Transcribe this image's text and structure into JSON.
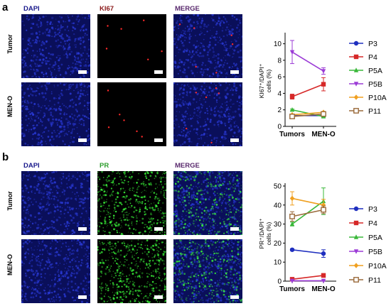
{
  "panel_a": {
    "letter": "a",
    "columns": [
      "DAPI",
      "KI67",
      "MERGE"
    ],
    "rows": [
      "Tumor",
      "MEN-O"
    ]
  },
  "panel_b": {
    "letter": "b",
    "columns": [
      "DAPI",
      "PR",
      "MERGE"
    ],
    "rows": [
      "Tumor",
      "MEN-O"
    ]
  },
  "colors": {
    "dapi_title": "#1a1a8c",
    "ki67_title": "#8b1a1a",
    "pr_title": "#2e9e2e",
    "merge_title": "#5a2a6e",
    "dapi_bg": "#0a0f5a",
    "dapi_dots": "#2a3ad8",
    "ki67_dot": "#ff2a2a",
    "pr_dot": "#3cff3c"
  },
  "chart_data": [
    {
      "type": "line",
      "categories": [
        "Tumors",
        "MEN-O"
      ],
      "ylabel": "KI67⁺/DAPI⁺ cells (%)",
      "ylim": [
        0,
        11
      ],
      "yticks": [
        0,
        2,
        4,
        6,
        8,
        10
      ],
      "series": [
        {
          "name": "P3",
          "color": "#1f2fbf",
          "marker": "circle",
          "values": [
            1.3,
            1.3
          ],
          "errors": [
            0.1,
            0.1
          ]
        },
        {
          "name": "P4",
          "color": "#d62828",
          "marker": "square",
          "values": [
            3.6,
            5.1
          ],
          "errors": [
            0.3,
            0.8
          ]
        },
        {
          "name": "P5A",
          "color": "#3ab83a",
          "marker": "triangle",
          "values": [
            2.0,
            1.2
          ],
          "errors": [
            0.1,
            0.1
          ]
        },
        {
          "name": "P5B",
          "color": "#9b3bd6",
          "marker": "triangle-down",
          "values": [
            9.0,
            6.7
          ],
          "errors": [
            1.4,
            0.4
          ]
        },
        {
          "name": "P10A",
          "color": "#f0a020",
          "marker": "diamond",
          "values": [
            1.4,
            1.7
          ],
          "errors": [
            0.1,
            0.1
          ]
        },
        {
          "name": "P11",
          "color": "#9a6a3a",
          "marker": "square-open",
          "values": [
            1.2,
            1.5
          ],
          "errors": [
            0.1,
            0.1
          ]
        }
      ]
    },
    {
      "type": "line",
      "categories": [
        "Tumors",
        "MEN-O"
      ],
      "ylabel": "PR⁺/DAPI⁺ cells (%)",
      "ylim": [
        0,
        50
      ],
      "yticks": [
        0,
        10,
        20,
        30,
        40,
        50
      ],
      "series": [
        {
          "name": "P3",
          "color": "#1f2fbf",
          "marker": "circle",
          "values": [
            16.5,
            14.5
          ],
          "errors": [
            0.5,
            2.0
          ]
        },
        {
          "name": "P4",
          "color": "#d62828",
          "marker": "square",
          "values": [
            1.0,
            3.0
          ],
          "errors": [
            0.5,
            1.0
          ]
        },
        {
          "name": "P5A",
          "color": "#3ab83a",
          "marker": "triangle",
          "values": [
            30.0,
            42.0
          ],
          "errors": [
            1.0,
            7.0
          ]
        },
        {
          "name": "P5B",
          "color": "#9b3bd6",
          "marker": "triangle-down",
          "values": [
            0.2,
            0.2
          ],
          "errors": [
            0.1,
            0.1
          ]
        },
        {
          "name": "P10A",
          "color": "#f0a020",
          "marker": "diamond",
          "values": [
            43.5,
            40.0
          ],
          "errors": [
            3.5,
            3.0
          ]
        },
        {
          "name": "P11",
          "color": "#9a6a3a",
          "marker": "square-open",
          "values": [
            34.0,
            37.5
          ],
          "errors": [
            2.5,
            2.0
          ]
        }
      ]
    }
  ]
}
